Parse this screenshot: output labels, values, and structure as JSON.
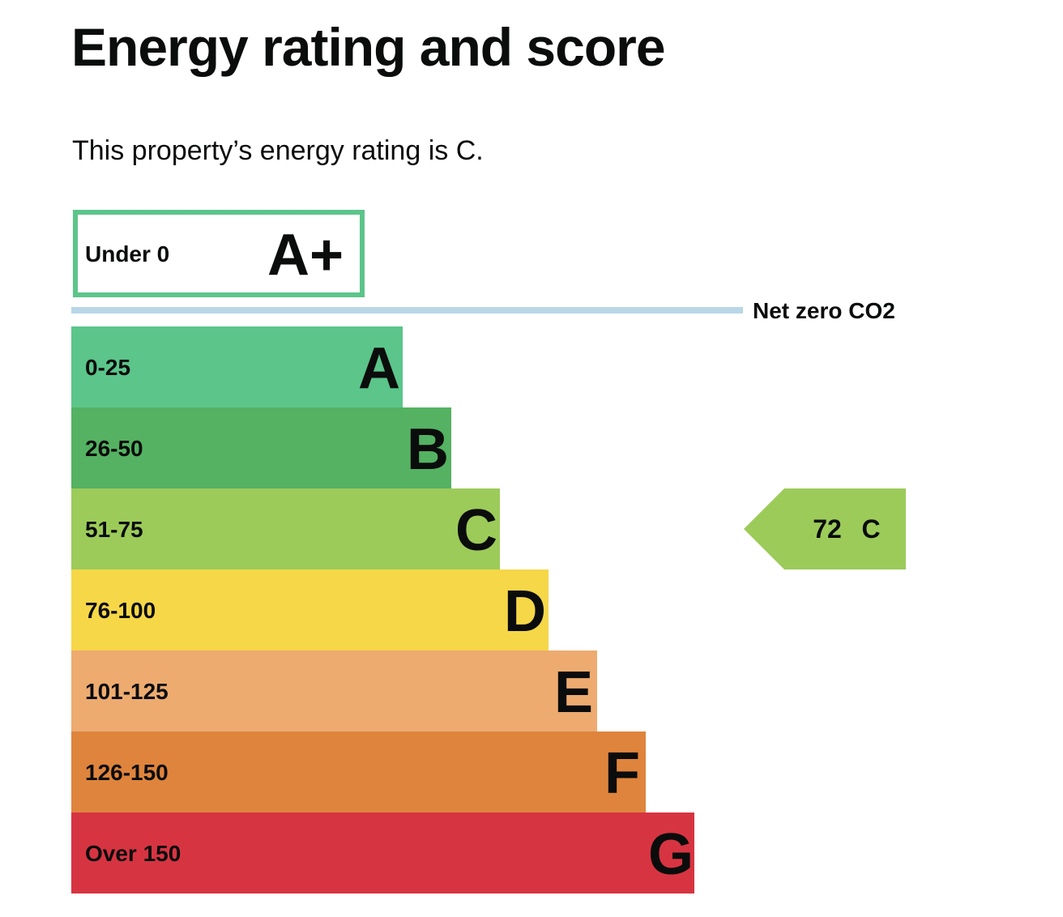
{
  "page": {
    "heading": "Energy rating and score",
    "intro": "This property’s energy rating is C."
  },
  "chart_data": {
    "type": "bar",
    "title": "",
    "net_zero_label": "Net zero CO2",
    "net_zero_line_color": "#b8d7e6",
    "bands": [
      {
        "letter": "A+",
        "range": "Under 0",
        "color": "#ffffff",
        "border_color": "#5bc58a",
        "outlined": true
      },
      {
        "letter": "A",
        "range": "0-25",
        "color": "#5bc58a"
      },
      {
        "letter": "B",
        "range": "26-50",
        "color": "#54b262"
      },
      {
        "letter": "C",
        "range": "51-75",
        "color": "#9ccb5a"
      },
      {
        "letter": "D",
        "range": "76-100",
        "color": "#f6d748"
      },
      {
        "letter": "E",
        "range": "101-125",
        "color": "#edab70"
      },
      {
        "letter": "F",
        "range": "126-150",
        "color": "#df843c"
      },
      {
        "letter": "G",
        "range": "Over 150",
        "color": "#d73442"
      }
    ],
    "current": {
      "score": "72",
      "letter": "C",
      "band_index": 3,
      "color": "#9ccb5a"
    }
  }
}
